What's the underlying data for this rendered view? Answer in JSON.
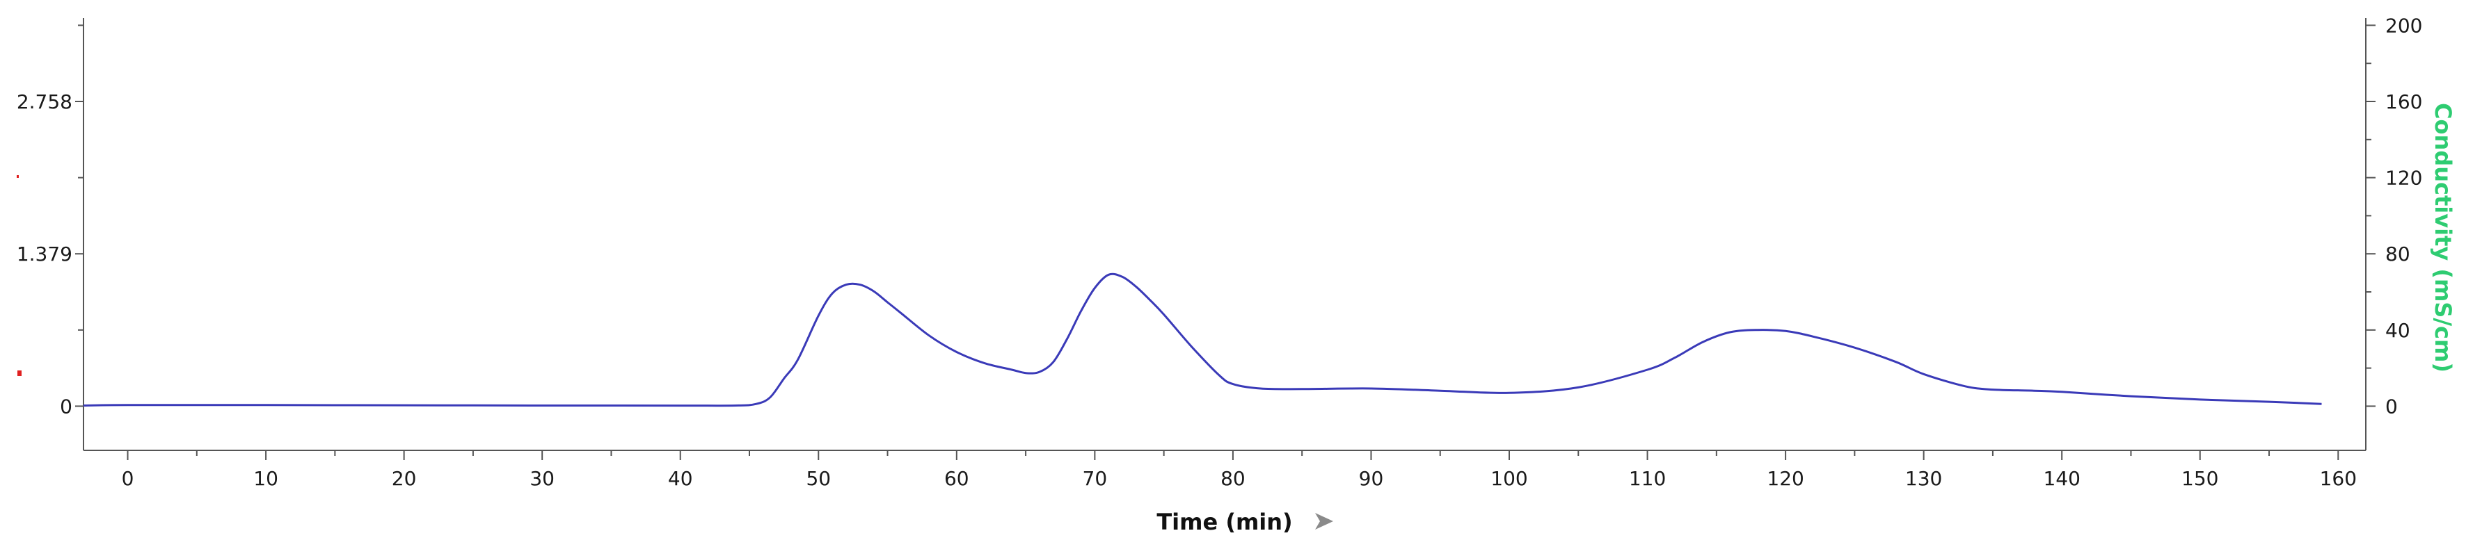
{
  "chart_data": {
    "type": "line",
    "xlabel": "Time (min)",
    "y2label": "Conductivity (mS/cm)",
    "xlim": [
      -3.2,
      162
    ],
    "ylim": [
      -0.4,
      3.45
    ],
    "y2lim": [
      -0.4,
      3.45
    ],
    "x_ticks": [
      0,
      10,
      20,
      30,
      40,
      50,
      60,
      70,
      80,
      90,
      100,
      110,
      120,
      130,
      140,
      150,
      160
    ],
    "y_ticks": [
      0,
      1.379,
      2.758
    ],
    "y_tick_labels": [
      "0",
      "1.379",
      "2.758"
    ],
    "y2_ticks": [
      0,
      0.6895,
      1.379,
      2.0685,
      2.758,
      3.4475
    ],
    "y2_tick_labels": [
      "0",
      "40",
      "80",
      "120",
      "160",
      "200"
    ],
    "grid": false,
    "colors": {
      "series": "#3a3ab8",
      "y2label": "#2ecc71",
      "axis": "#555555"
    },
    "series": [
      {
        "x": [
          -3.2,
          0,
          10,
          20,
          30,
          40,
          44,
          45.5,
          46.5,
          47.5,
          48.5,
          50,
          51,
          52,
          53,
          54,
          55,
          56,
          58,
          60,
          62,
          64,
          65,
          66,
          67,
          68,
          69,
          70,
          71,
          72,
          73,
          74,
          75,
          77,
          79,
          80,
          82,
          85,
          90,
          95,
          100,
          105,
          110,
          112,
          114,
          116,
          118,
          120,
          122,
          125,
          128,
          130,
          133,
          135,
          138,
          140,
          145,
          150,
          155,
          158.8
        ],
        "y": [
          0.006,
          0.01,
          0.01,
          0.008,
          0.006,
          0.005,
          0.006,
          0.02,
          0.08,
          0.25,
          0.42,
          0.82,
          1.02,
          1.1,
          1.1,
          1.04,
          0.94,
          0.84,
          0.64,
          0.49,
          0.39,
          0.33,
          0.3,
          0.31,
          0.4,
          0.61,
          0.86,
          1.07,
          1.19,
          1.17,
          1.08,
          0.96,
          0.83,
          0.54,
          0.28,
          0.2,
          0.16,
          0.155,
          0.16,
          0.14,
          0.12,
          0.17,
          0.33,
          0.44,
          0.58,
          0.67,
          0.69,
          0.68,
          0.63,
          0.53,
          0.4,
          0.29,
          0.18,
          0.15,
          0.14,
          0.13,
          0.09,
          0.06,
          0.04,
          0.02
        ]
      }
    ]
  }
}
